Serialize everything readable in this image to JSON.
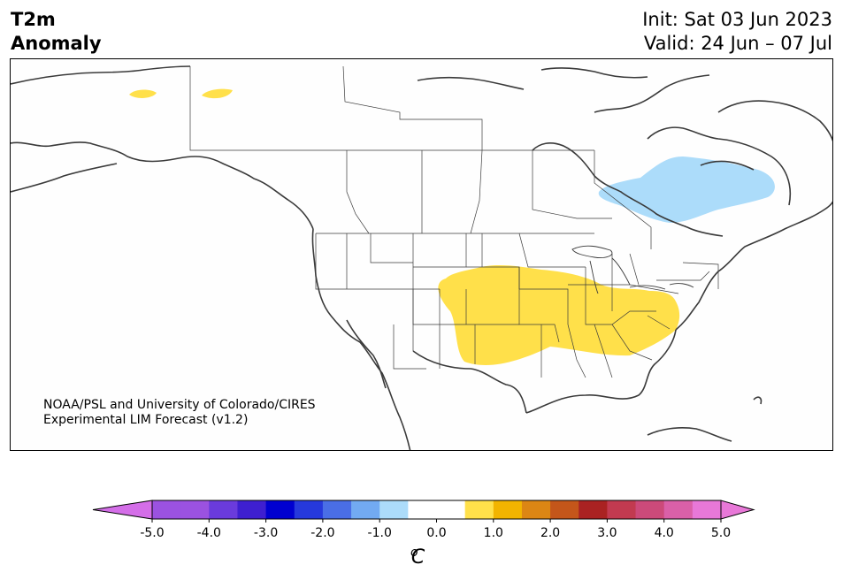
{
  "header": {
    "variable": "T2m",
    "type": "Anomaly",
    "init": "Init: Sat 03 Jun 2023",
    "valid": "Valid: 24 Jun – 07 Jul"
  },
  "credit": {
    "line1": "NOAA/PSL and University of Colorado/CIRES",
    "line2": "Experimental LIM Forecast (v1.2)"
  },
  "colorbar": {
    "unit": "oC",
    "unit_base": "C",
    "unit_sup": "o",
    "ticks": [
      "-5.0",
      "-4.0",
      "-3.0",
      "-2.0",
      "-1.0",
      "0.0",
      "1.0",
      "2.0",
      "3.0",
      "4.0",
      "5.0"
    ],
    "tick_values": [
      -5,
      -4,
      -3,
      -2,
      -1,
      0,
      1,
      2,
      3,
      4,
      5
    ],
    "bins": [
      {
        "lo": -5.0,
        "hi": -4.5,
        "color": "#9b52e0"
      },
      {
        "lo": -4.5,
        "hi": -4.0,
        "color": "#9b52e0"
      },
      {
        "lo": -4.0,
        "hi": -3.5,
        "color": "#6a3bdc"
      },
      {
        "lo": -3.5,
        "hi": -3.0,
        "color": "#3e1fd0"
      },
      {
        "lo": -3.0,
        "hi": -2.5,
        "color": "#0000d0"
      },
      {
        "lo": -2.5,
        "hi": -2.0,
        "color": "#2639dc"
      },
      {
        "lo": -2.0,
        "hi": -1.5,
        "color": "#4a6ee6"
      },
      {
        "lo": -1.5,
        "hi": -1.0,
        "color": "#72aaf2"
      },
      {
        "lo": -1.0,
        "hi": -0.5,
        "color": "#acdcfa"
      },
      {
        "lo": -0.5,
        "hi": 0.5,
        "color": "#ffffff"
      },
      {
        "lo": 0.5,
        "hi": 1.0,
        "color": "#ffe04a"
      },
      {
        "lo": 1.0,
        "hi": 1.5,
        "color": "#f2b400"
      },
      {
        "lo": 1.5,
        "hi": 2.0,
        "color": "#dc8614"
      },
      {
        "lo": 2.0,
        "hi": 2.5,
        "color": "#c4561a"
      },
      {
        "lo": 2.5,
        "hi": 3.0,
        "color": "#aa2222"
      },
      {
        "lo": 3.0,
        "hi": 3.5,
        "color": "#c23a50"
      },
      {
        "lo": 3.5,
        "hi": 4.0,
        "color": "#cc4a7a"
      },
      {
        "lo": 4.0,
        "hi": 4.5,
        "color": "#da60a8"
      },
      {
        "lo": 4.5,
        "hi": 5.0,
        "color": "#e878d8"
      }
    ],
    "under_color": "#d46ee8",
    "over_color": "#e878d8"
  },
  "map": {
    "projection": "North America",
    "coastline_color": "#3a3a3a",
    "land_color": "#fefefe",
    "anomaly_regions": [
      {
        "name": "Central and eastern United States",
        "color": "#ffe04a"
      },
      {
        "name": "Western Alaska",
        "color": "#ffe04a"
      },
      {
        "name": "Eastern Alaska",
        "color": "#ffe04a"
      },
      {
        "name": "Hudson Bay",
        "color": "#acdcfa"
      }
    ]
  }
}
